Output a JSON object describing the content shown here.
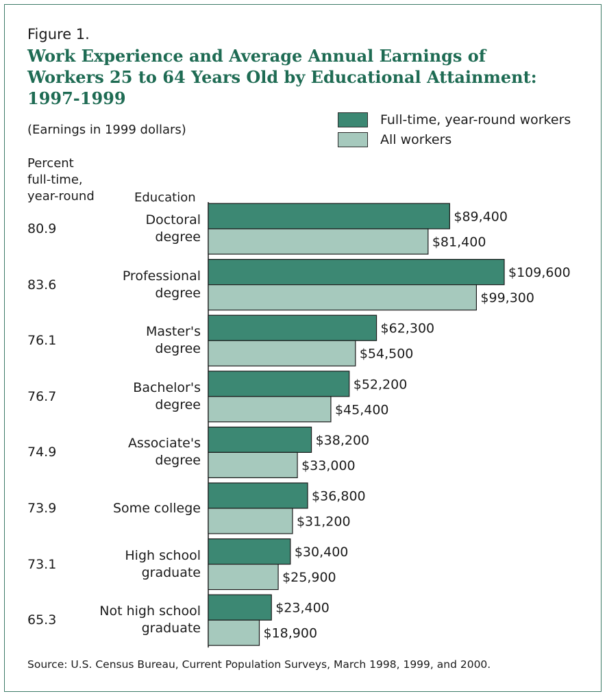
{
  "figure_label": "Figure 1.",
  "title": "Work Experience and Average Annual Earnings of Workers 25 to 64 Years Old by Educational Attainment: 1997-1999",
  "subtitle": "(Earnings in 1999 dollars)",
  "column_headers": {
    "percent": "Percent\nfull-time,\nyear-round",
    "education": "Education"
  },
  "source": "Source: U.S. Census Bureau, Current Population Surveys, March 1998, 1999, and 2000.",
  "colors": {
    "full_time": "#3c8873",
    "all_workers": "#a6c9bd",
    "title": "#1e6b53",
    "border": "#3d7a66"
  },
  "chart_data": {
    "type": "bar",
    "orientation": "horizontal",
    "title": "Work Experience and Average Annual Earnings of Workers 25 to 64 Years Old by Educational Attainment: 1997-1999",
    "subtitle": "(Earnings in 1999 dollars)",
    "xlim": [
      0,
      110000
    ],
    "grid": false,
    "legend_position": "top-right",
    "categories": [
      "Doctoral\ndegree",
      "Professional\ndegree",
      "Master's\ndegree",
      "Bachelor's\ndegree",
      "Associate's\ndegree",
      "Some college",
      "High school\ngraduate",
      "Not high school\ngraduate"
    ],
    "percent_full_time": [
      "80.9",
      "83.6",
      "76.1",
      "76.7",
      "74.9",
      "73.9",
      "73.1",
      "65.3"
    ],
    "series": [
      {
        "name": "Full-time, year-round workers",
        "values": [
          89400,
          109600,
          62300,
          52200,
          38200,
          36800,
          30400,
          23400
        ],
        "labels": [
          "$89,400",
          "$109,600",
          "$62,300",
          "$52,200",
          "$38,200",
          "$36,800",
          "$30,400",
          "$23,400"
        ]
      },
      {
        "name": "All workers",
        "values": [
          81400,
          99300,
          54500,
          45400,
          33000,
          31200,
          25900,
          18900
        ],
        "labels": [
          "$81,400",
          "$99,300",
          "$54,500",
          "$45,400",
          "$33,000",
          "$31,200",
          "$25,900",
          "$18,900"
        ]
      }
    ]
  }
}
